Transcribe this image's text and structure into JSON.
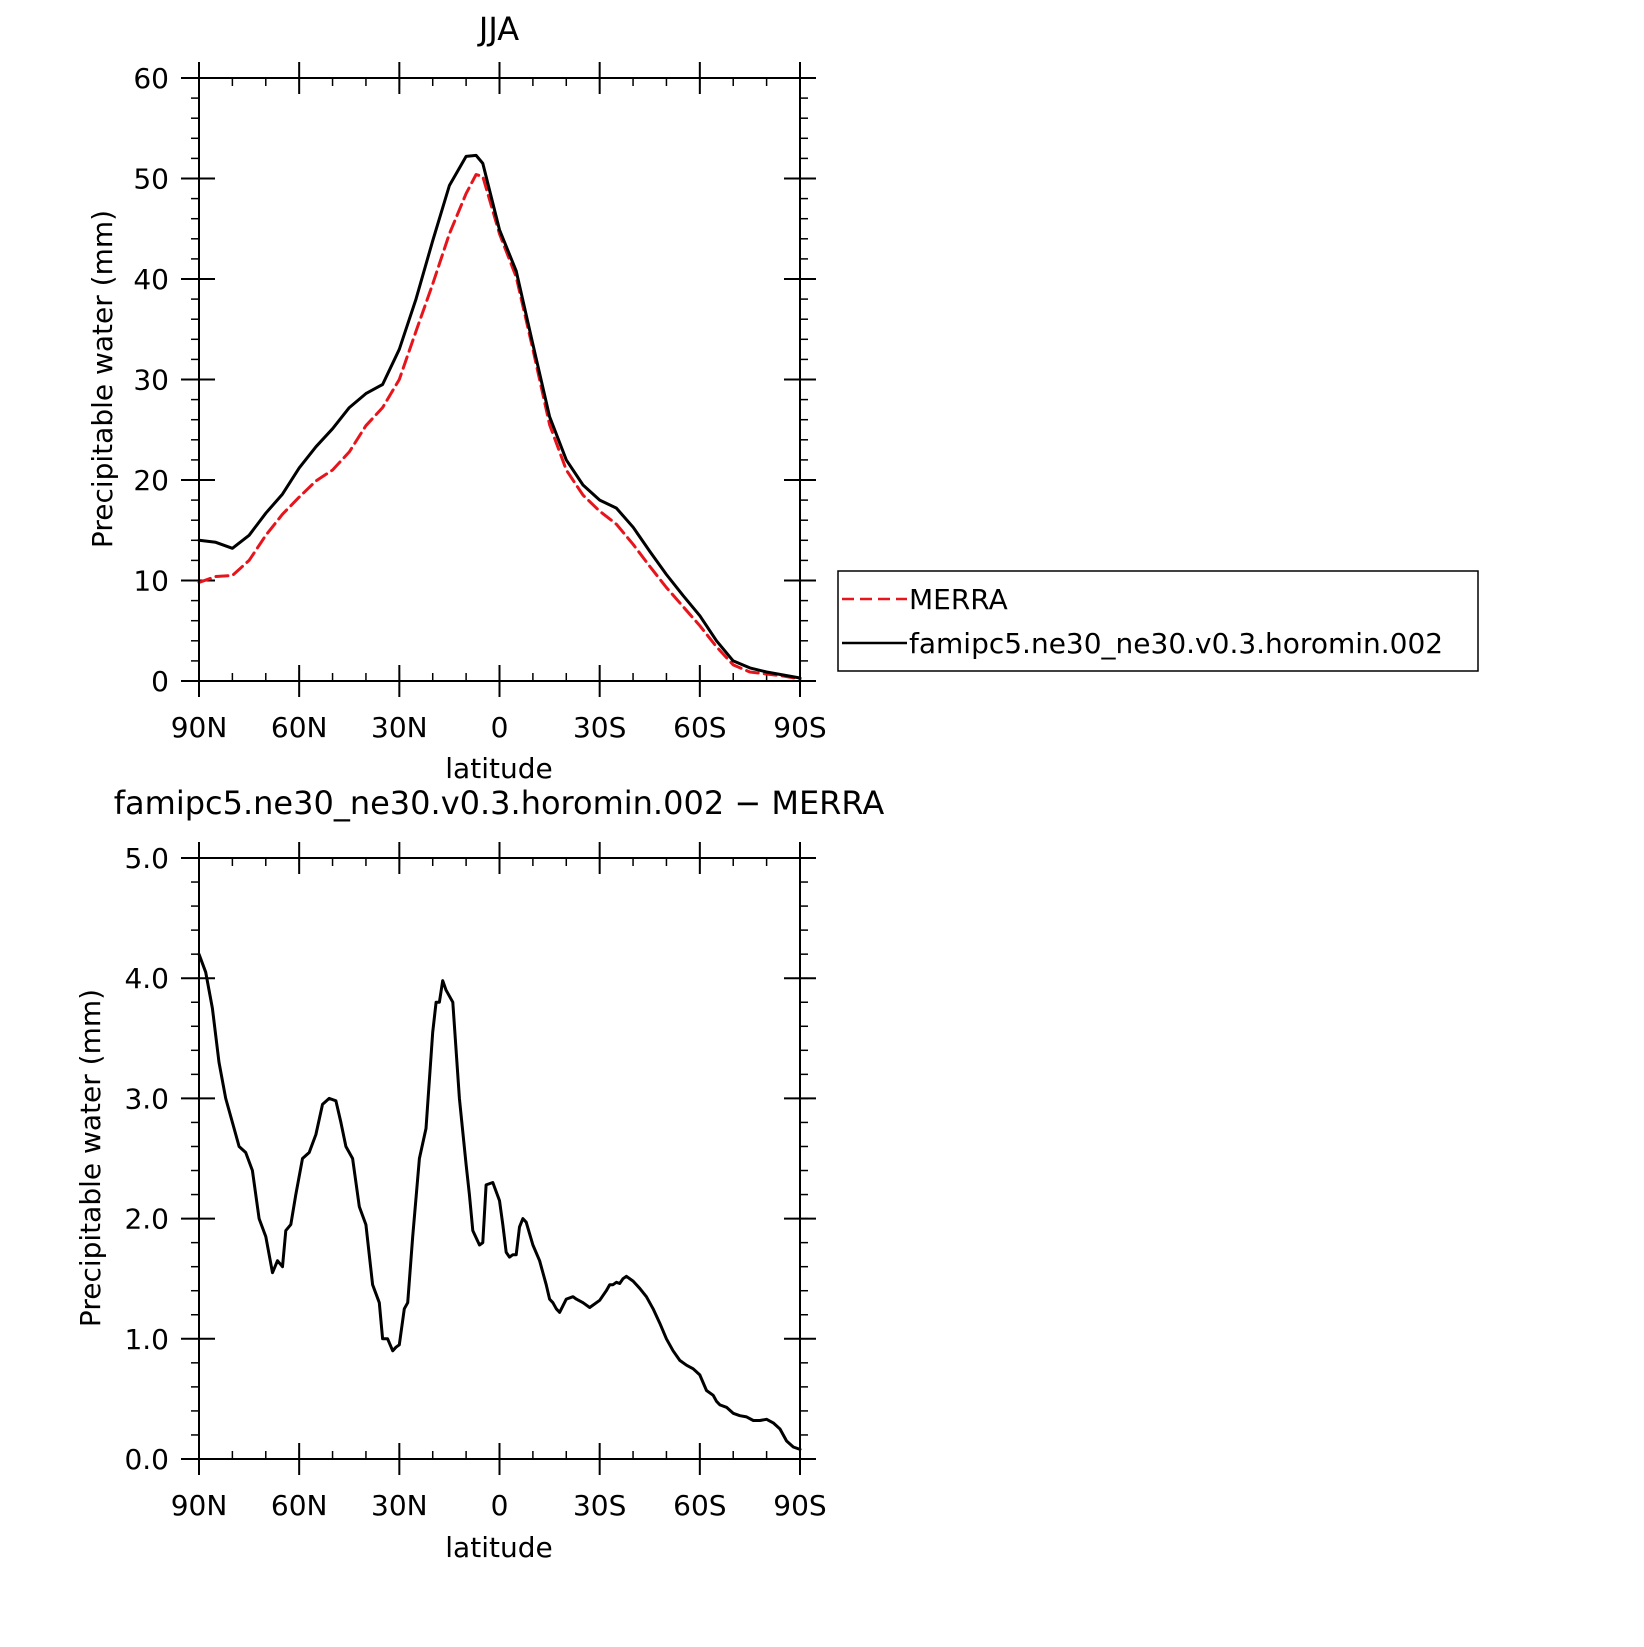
{
  "chart_data": [
    {
      "type": "line",
      "title": "JJA",
      "xlabel": "latitude",
      "ylabel": "Precipitable water (mm)",
      "x_ticks": [
        90,
        60,
        30,
        0,
        -30,
        -60,
        -90
      ],
      "x_tick_labels": [
        "90N",
        "60N",
        "30N",
        "0",
        "30S",
        "60S",
        "90S"
      ],
      "xlim": [
        90,
        -90
      ],
      "ylim": [
        0,
        60
      ],
      "y_ticks": [
        0,
        10,
        20,
        30,
        40,
        50,
        60
      ],
      "y_tick_labels": [
        "0",
        "10",
        "20",
        "30",
        "40",
        "50",
        "60"
      ],
      "legend_position": "right",
      "series": [
        {
          "name": "MERRA",
          "color": "#e8141c",
          "dash": true,
          "x": [
            90,
            85,
            80,
            75,
            70,
            65,
            60,
            55,
            50,
            45,
            40,
            35,
            30,
            25,
            20,
            15,
            10,
            7,
            5,
            0,
            -5,
            -10,
            -15,
            -20,
            -25,
            -30,
            -35,
            -40,
            -45,
            -50,
            -55,
            -60,
            -65,
            -70,
            -75,
            -80,
            -85,
            -90
          ],
          "y": [
            9.8,
            10.4,
            10.5,
            12,
            14.5,
            16.6,
            18.3,
            19.9,
            21,
            22.8,
            25.4,
            27.2,
            30,
            34.8,
            39.5,
            44.5,
            48.5,
            50.4,
            50.2,
            44.5,
            40.2,
            33,
            25.5,
            21,
            18.5,
            16.9,
            15.6,
            13.6,
            11.4,
            9.3,
            7.4,
            5.5,
            3.4,
            1.6,
            0.9,
            0.7,
            0.5,
            0.2
          ]
        },
        {
          "name": "famipc5.ne30_ne30.v0.3.horomin.002",
          "color": "#000000",
          "dash": false,
          "x": [
            90,
            85,
            80,
            75,
            70,
            65,
            60,
            55,
            50,
            45,
            40,
            35,
            30,
            25,
            20,
            15,
            10,
            7,
            5,
            0,
            -5,
            -10,
            -15,
            -20,
            -25,
            -30,
            -35,
            -40,
            -45,
            -50,
            -55,
            -60,
            -65,
            -70,
            -75,
            -80,
            -85,
            -90
          ],
          "y": [
            14,
            13.8,
            13.2,
            14.5,
            16.7,
            18.6,
            21.2,
            23.3,
            25.1,
            27.2,
            28.6,
            29.5,
            33,
            38,
            43.8,
            49.3,
            52.2,
            52.3,
            51.5,
            44.9,
            40.8,
            33.5,
            26.3,
            22,
            19.5,
            18,
            17.2,
            15.3,
            12.9,
            10.6,
            8.5,
            6.5,
            4,
            2,
            1.3,
            0.9,
            0.6,
            0.3
          ]
        }
      ]
    },
    {
      "type": "line",
      "title": "famipc5.ne30_ne30.v0.3.horomin.002 − MERRA",
      "xlabel": "latitude",
      "ylabel": "Precipitable water (mm)",
      "x_ticks": [
        90,
        60,
        30,
        0,
        -30,
        -60,
        -90
      ],
      "x_tick_labels": [
        "90N",
        "60N",
        "30N",
        "0",
        "30S",
        "60S",
        "90S"
      ],
      "xlim": [
        90,
        -90
      ],
      "ylim": [
        0,
        5
      ],
      "y_ticks": [
        0,
        1,
        2,
        3,
        4,
        5
      ],
      "y_tick_labels": [
        "0.0",
        "1.0",
        "2.0",
        "3.0",
        "4.0",
        "5.0"
      ],
      "series": [
        {
          "color": "#000000",
          "dash": false,
          "x": [
            90,
            88,
            86,
            84,
            82,
            80,
            78,
            76,
            74,
            72,
            70,
            68,
            66.5,
            65,
            64,
            62.5,
            61,
            59,
            57,
            55,
            53,
            51,
            49,
            47.5,
            46,
            44,
            42,
            40,
            38,
            36,
            35,
            33.5,
            32,
            31,
            30,
            28.5,
            27.5,
            26,
            24,
            22,
            20,
            19,
            18,
            17,
            16,
            14,
            12,
            10,
            9,
            8,
            6,
            5,
            4,
            2,
            0,
            -1,
            -2,
            -3,
            -4,
            -5,
            -6,
            -7,
            -8,
            -10,
            -12,
            -14,
            -15,
            -16,
            -17,
            -18,
            -20,
            -22,
            -23,
            -25,
            -27,
            -30,
            -32,
            -33,
            -34,
            -35,
            -36,
            -37,
            -38,
            -40,
            -42,
            -44,
            -46,
            -48,
            -50,
            -52,
            -54,
            -56,
            -58,
            -60,
            -62,
            -64,
            -65,
            -66,
            -68,
            -70,
            -72,
            -74,
            -76,
            -78,
            -80,
            -82,
            -84,
            -86,
            -88,
            -90
          ],
          "y": [
            4.2,
            4.05,
            3.75,
            3.3,
            3,
            2.8,
            2.6,
            2.55,
            2.4,
            2,
            1.85,
            1.55,
            1.65,
            1.6,
            1.9,
            1.95,
            2.2,
            2.5,
            2.55,
            2.7,
            2.95,
            3,
            2.98,
            2.8,
            2.6,
            2.5,
            2.1,
            1.95,
            1.45,
            1.3,
            1.0,
            1.0,
            0.9,
            0.93,
            0.95,
            1.25,
            1.3,
            1.85,
            2.5,
            2.75,
            3.55,
            3.8,
            3.8,
            3.98,
            3.9,
            3.8,
            3.0,
            2.45,
            2.2,
            1.9,
            1.78,
            1.8,
            2.28,
            2.3,
            2.15,
            1.95,
            1.72,
            1.68,
            1.7,
            1.7,
            1.93,
            2.0,
            1.97,
            1.78,
            1.65,
            1.45,
            1.33,
            1.3,
            1.25,
            1.22,
            1.33,
            1.35,
            1.33,
            1.3,
            1.26,
            1.32,
            1.4,
            1.45,
            1.45,
            1.47,
            1.46,
            1.5,
            1.52,
            1.48,
            1.42,
            1.35,
            1.25,
            1.13,
            1.0,
            0.9,
            0.82,
            0.78,
            0.75,
            0.7,
            0.57,
            0.53,
            0.48,
            0.45,
            0.43,
            0.38,
            0.36,
            0.35,
            0.32,
            0.32,
            0.33,
            0.3,
            0.25,
            0.15,
            0.1,
            0.08
          ]
        }
      ]
    }
  ]
}
